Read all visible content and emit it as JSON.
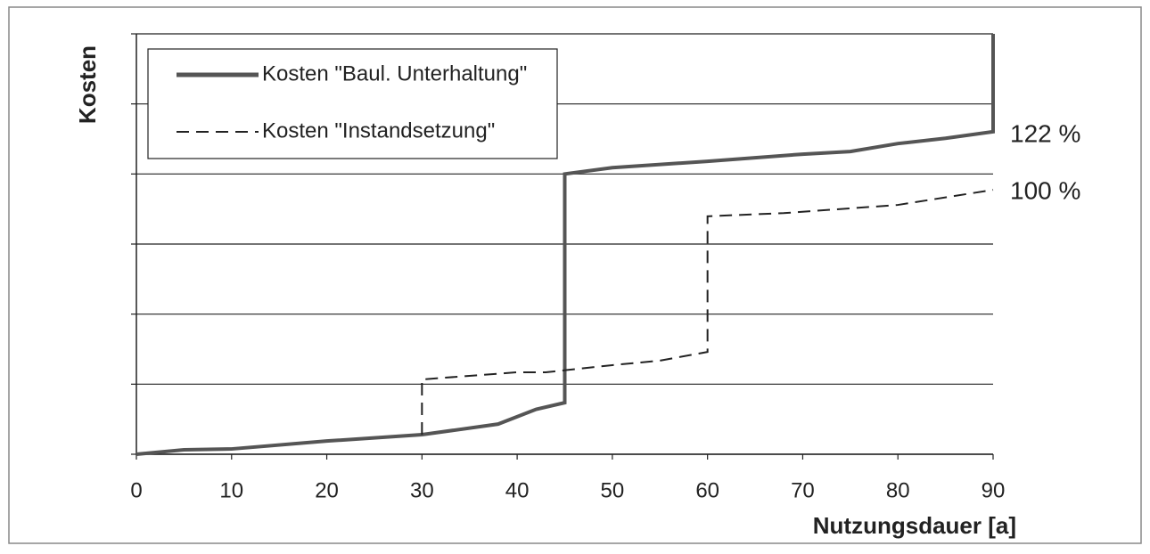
{
  "chart_data": {
    "type": "line",
    "x_label": "Nutzungsdauer [a]",
    "y_label": "Kosten",
    "xlim": [
      0,
      90
    ],
    "xticks": [
      0,
      10,
      20,
      30,
      40,
      50,
      60,
      70,
      80,
      90
    ],
    "ylim": [
      0,
      159
    ],
    "yticks": [
      0,
      26.5,
      53,
      79.5,
      106,
      132.5,
      159
    ],
    "grid": true,
    "legend": "upper left",
    "annotations": [
      "122 %",
      "100 %"
    ],
    "series": [
      {
        "name": "Kosten \"Baul. Unterhaltung\"",
        "color": "#555555",
        "style": "solid",
        "x": [
          0,
          5,
          10,
          20,
          30,
          38,
          42,
          45,
          45,
          50,
          60,
          70,
          75,
          80,
          85,
          90,
          90
        ],
        "values": [
          0,
          1.7,
          2,
          5,
          7.4,
          11.4,
          17,
          19.5,
          106,
          108.4,
          110.8,
          113.5,
          114.5,
          117.5,
          119.5,
          122,
          159
        ]
      },
      {
        "name": "Kosten \"Instandsetzung\"",
        "color": "#222222",
        "style": "dashed",
        "x": [
          30,
          30,
          40,
          43,
          50,
          55,
          60,
          60,
          68,
          80,
          90
        ],
        "values": [
          7.4,
          28.3,
          31,
          31,
          33.7,
          35.4,
          38.7,
          90,
          91.2,
          94.3,
          100
        ]
      }
    ]
  }
}
